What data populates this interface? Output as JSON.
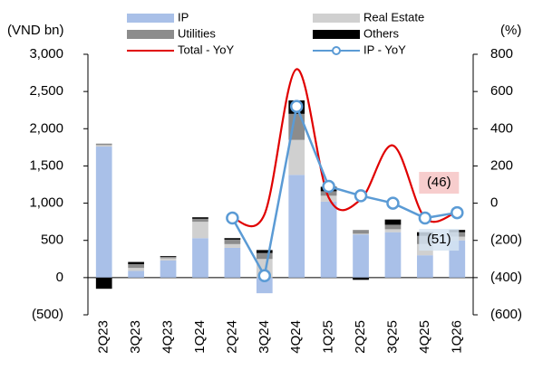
{
  "chart_data": {
    "type": "bar",
    "y_label": "(VND bn)",
    "y2_label": "(%)",
    "categories": [
      "2Q23",
      "3Q23",
      "4Q23",
      "1Q24",
      "2Q24",
      "3Q24",
      "4Q24",
      "1Q25",
      "2Q25",
      "3Q25",
      "4Q25",
      "1Q26"
    ],
    "series": [
      {
        "name": "IP",
        "color": "#a9c0e8",
        "values": [
          1760,
          90,
          230,
          530,
          400,
          -210,
          1380,
          1020,
          580,
          610,
          300,
          500
        ]
      },
      {
        "name": "Real Estate",
        "color": "#d0d0d0",
        "values": [
          20,
          40,
          30,
          220,
          50,
          250,
          470,
          80,
          10,
          40,
          150,
          50
        ]
      },
      {
        "name": "Utilities",
        "color": "#8c8c8c",
        "values": [
          20,
          50,
          20,
          40,
          60,
          80,
          350,
          60,
          50,
          60,
          110,
          60
        ]
      },
      {
        "name": "Others",
        "color": "#000000",
        "values": [
          -150,
          30,
          10,
          20,
          20,
          40,
          180,
          60,
          -30,
          70,
          50,
          30
        ]
      },
      {
        "name": "Total - YoY",
        "type": "line",
        "axis": "y2",
        "color": "#e00000",
        "smooth": true,
        "values": [
          null,
          null,
          null,
          null,
          -80,
          -60,
          720,
          30,
          20,
          310,
          -80,
          -46
        ],
        "value_labels": [
          null,
          null,
          null,
          null,
          null,
          null,
          null,
          null,
          null,
          null,
          null,
          "(46)"
        ]
      },
      {
        "name": "IP - YoY",
        "type": "line",
        "axis": "y2",
        "color": "#5b9bd5",
        "markers": true,
        "values": [
          null,
          null,
          null,
          null,
          -80,
          -390,
          520,
          90,
          40,
          0,
          -80,
          -51
        ],
        "value_labels": [
          null,
          null,
          null,
          null,
          null,
          null,
          null,
          null,
          null,
          null,
          null,
          "(51)"
        ]
      }
    ],
    "ylim": [
      -500,
      3000
    ],
    "yticks": [
      {
        "value": -500,
        "label": "(500)"
      },
      0,
      500,
      {
        "value": 1000,
        "label": "1,000"
      },
      {
        "value": 1500,
        "label": "1,500"
      },
      {
        "value": 2000,
        "label": "2,000"
      },
      {
        "value": 2500,
        "label": "2,500"
      },
      {
        "value": 3000,
        "label": "3,000"
      }
    ],
    "y2lim": [
      -600,
      800
    ],
    "y2ticks": [
      {
        "value": -600,
        "label": "(600)"
      },
      {
        "value": -400,
        "label": "(400)"
      },
      {
        "value": -200,
        "label": "(200)"
      },
      0,
      200,
      400,
      600,
      800
    ],
    "negative_color": "#e00000",
    "legend": "top"
  }
}
